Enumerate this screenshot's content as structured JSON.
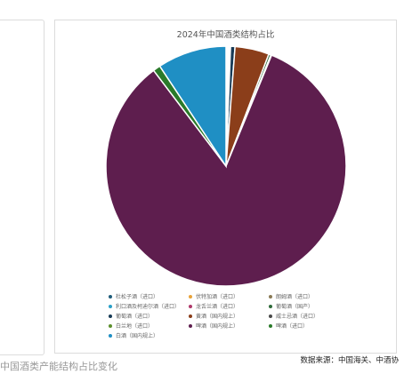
{
  "caption": "中国酒类产能结构占比变化",
  "source": "数据来源：中国海关、中酒协",
  "chart_data": {
    "type": "pie",
    "title": "2024年中国酒类结构占比",
    "legend_position": "bottom",
    "series": [
      {
        "name": "杜松子酒（进口）",
        "value": 0.1,
        "color": "#1f5c7a"
      },
      {
        "name": "伏特加酒（进口）",
        "value": 0.1,
        "color": "#e8a33a"
      },
      {
        "name": "朗姆酒（进口）",
        "value": 0.1,
        "color": "#8a7a55"
      },
      {
        "name": "利口酒及柯迪尔酒（进口）",
        "value": 0.1,
        "color": "#2aa0c8"
      },
      {
        "name": "龙舌兰酒（进口）",
        "value": 0.1,
        "color": "#b03a6b"
      },
      {
        "name": "葡萄酒（国产）",
        "value": 0.3,
        "color": "#2f6b3b"
      },
      {
        "name": "葡萄酒（进口）",
        "value": 0.6,
        "color": "#173a56"
      },
      {
        "name": "黄酒（国内规上）",
        "value": 4.6,
        "color": "#8b3e1a"
      },
      {
        "name": "威士忌酒（进口）",
        "value": 0.1,
        "color": "#4a4a4a"
      },
      {
        "name": "白兰地（进口）",
        "value": 0.1,
        "color": "#5b8f2c"
      },
      {
        "name": "啤酒（国内规上）",
        "value": 83.5,
        "color": "#5e1e4e"
      },
      {
        "name": "啤酒（进口）",
        "value": 1.0,
        "color": "#2a7a2a"
      },
      {
        "name": "白酒（国内规上）",
        "value": 9.3,
        "color": "#1f8fc4"
      }
    ],
    "draw_order": [
      "杜松子酒（进口）",
      "伏特加酒（进口）",
      "朗姆酒（进口）",
      "龙舌兰酒（进口）",
      "威士忌酒（进口）",
      "白兰地（进口）",
      "葡萄酒（进口）",
      "黄酒（国内规上）",
      "葡萄酒（国产）",
      "利口酒及柯迪尔酒（进口）",
      "啤酒（国内规上）",
      "啤酒（进口）",
      "白酒（国内规上）"
    ]
  }
}
